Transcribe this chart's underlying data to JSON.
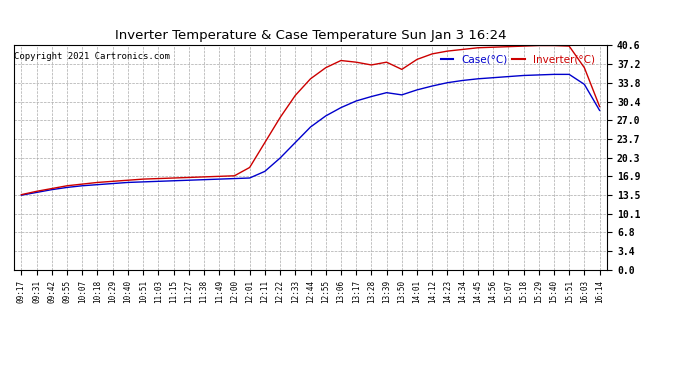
{
  "title": "Inverter Temperature & Case Temperature Sun Jan 3 16:24",
  "copyright": "Copyright 2021 Cartronics.com",
  "legend_case": "Case(°C)",
  "legend_inverter": "Inverter(°C)",
  "yticks": [
    0.0,
    3.4,
    6.8,
    10.1,
    13.5,
    16.9,
    20.3,
    23.7,
    27.0,
    30.4,
    33.8,
    37.2,
    40.6
  ],
  "ylim": [
    0.0,
    40.6
  ],
  "xtick_labels": [
    "09:17",
    "09:31",
    "09:42",
    "09:55",
    "10:07",
    "10:18",
    "10:29",
    "10:40",
    "10:51",
    "11:03",
    "11:15",
    "11:27",
    "11:38",
    "11:49",
    "12:00",
    "12:01",
    "12:11",
    "12:22",
    "12:33",
    "12:44",
    "12:55",
    "13:06",
    "13:17",
    "13:28",
    "13:39",
    "13:50",
    "14:01",
    "14:12",
    "14:23",
    "14:34",
    "14:45",
    "14:56",
    "15:07",
    "15:18",
    "15:29",
    "15:40",
    "15:51",
    "16:03",
    "16:14"
  ],
  "case_color": "#0000cc",
  "inverter_color": "#cc0000",
  "bg_color": "#ffffff",
  "grid_color": "#aaaaaa",
  "title_color": "#000000",
  "copyright_color": "#000000",
  "case_data": [
    13.5,
    14.0,
    14.5,
    14.9,
    15.2,
    15.4,
    15.6,
    15.8,
    15.9,
    16.0,
    16.1,
    16.2,
    16.3,
    16.4,
    16.5,
    16.6,
    17.8,
    20.2,
    23.0,
    25.8,
    27.8,
    29.3,
    30.5,
    31.3,
    32.0,
    31.6,
    32.5,
    33.2,
    33.8,
    34.2,
    34.5,
    34.7,
    34.9,
    35.1,
    35.2,
    35.3,
    35.3,
    33.5,
    28.8
  ],
  "inverter_data": [
    13.6,
    14.2,
    14.7,
    15.2,
    15.5,
    15.8,
    16.0,
    16.2,
    16.4,
    16.5,
    16.6,
    16.7,
    16.8,
    16.9,
    17.0,
    18.5,
    23.0,
    27.5,
    31.5,
    34.5,
    36.5,
    37.8,
    37.5,
    37.0,
    37.5,
    36.2,
    38.0,
    39.0,
    39.5,
    39.8,
    40.1,
    40.2,
    40.3,
    40.4,
    40.5,
    40.5,
    40.4,
    36.5,
    29.5
  ]
}
